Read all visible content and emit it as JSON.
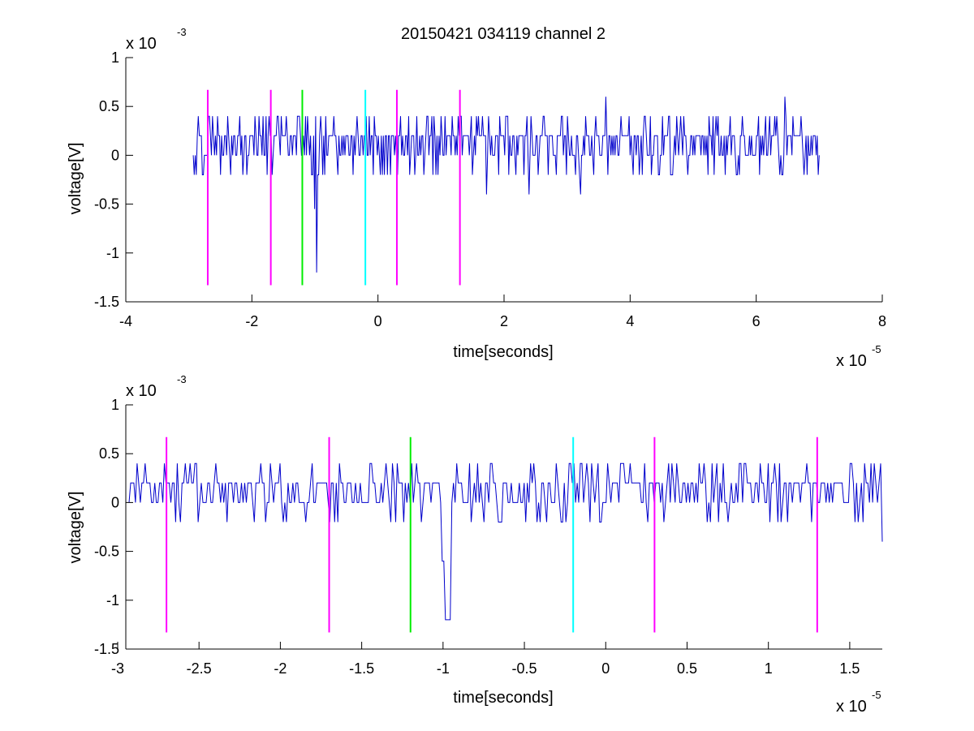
{
  "figure_title": "20150421 034119 channel 2",
  "colors": {
    "signal": "#0000cc",
    "magenta": "#ff00ff",
    "green": "#00ee00",
    "cyan": "#00ffff",
    "axes": "#000000"
  },
  "chart_data": [
    {
      "type": "line",
      "title": "20150421 034119 channel 2",
      "xlabel": "time[seconds]",
      "ylabel": "voltage[V]",
      "x_multiplier": "x 10",
      "x_exponent": "-5",
      "y_multiplier": "x 10",
      "y_exponent": "-3",
      "xlim": [
        -4,
        8
      ],
      "ylim": [
        -1.5,
        1
      ],
      "xticks": [
        -4,
        -2,
        0,
        2,
        4,
        6,
        8
      ],
      "xtick_labels": [
        "-4",
        "-2",
        "0",
        "2",
        "4",
        "6",
        "8"
      ],
      "yticks": [
        -1.5,
        -1,
        -0.5,
        0,
        0.5,
        1
      ],
      "ytick_labels": [
        "-1.5",
        "-1",
        "-0.5",
        "0",
        "0.5",
        "1"
      ],
      "grid": false,
      "markers": [
        {
          "x": -2.7,
          "color": "magenta",
          "ymin": -1.33,
          "ymax": 0.67
        },
        {
          "x": -1.7,
          "color": "magenta",
          "ymin": -1.33,
          "ymax": 0.67
        },
        {
          "x": -1.2,
          "color": "green",
          "ymin": -1.33,
          "ymax": 0.67
        },
        {
          "x": -0.2,
          "color": "cyan",
          "ymin": -1.33,
          "ymax": 0.67
        },
        {
          "x": 0.3,
          "color": "magenta",
          "ymin": -1.33,
          "ymax": 0.67
        },
        {
          "x": 1.3,
          "color": "magenta",
          "ymin": -1.33,
          "ymax": 0.67
        }
      ],
      "series": [
        {
          "x_range": [
            -2.93,
            7.0
          ],
          "points": 620,
          "seed": 7,
          "levels": [
            -0.2,
            0,
            0.2,
            0.4
          ],
          "spikes": [
            {
              "x": -0.97,
              "y": -1.2
            },
            {
              "x": -1.0,
              "y": -0.55
            },
            {
              "x": 3.62,
              "y": 0.6
            },
            {
              "x": 6.45,
              "y": 0.6
            },
            {
              "x": 3.22,
              "y": -0.4
            },
            {
              "x": 1.72,
              "y": -0.4
            },
            {
              "x": 2.4,
              "y": -0.4
            }
          ]
        }
      ]
    },
    {
      "type": "line",
      "xlabel": "time[seconds]",
      "ylabel": "voltage[V]",
      "x_multiplier": "x 10",
      "x_exponent": "-5",
      "y_multiplier": "x 10",
      "y_exponent": "-3",
      "xlim": [
        -2.95,
        1.7
      ],
      "ylim": [
        -1.5,
        1
      ],
      "xticks": [
        -3,
        -2.5,
        -2,
        -1.5,
        -1,
        -0.5,
        0,
        0.5,
        1,
        1.5
      ],
      "xtick_labels": [
        "-3",
        "-2.5",
        "-2",
        "-1.5",
        "-1",
        "-0.5",
        "0",
        "0.5",
        "1",
        "1.5"
      ],
      "yticks": [
        -1.5,
        -1,
        -0.5,
        0,
        0.5,
        1
      ],
      "ytick_labels": [
        "-1.5",
        "-1",
        "-0.5",
        "0",
        "0.5",
        "1"
      ],
      "grid": false,
      "markers": [
        {
          "x": -2.7,
          "color": "magenta",
          "ymin": -1.33,
          "ymax": 0.67
        },
        {
          "x": -1.7,
          "color": "magenta",
          "ymin": -1.33,
          "ymax": 0.67
        },
        {
          "x": -1.2,
          "color": "green",
          "ymin": -1.33,
          "ymax": 0.67
        },
        {
          "x": -0.2,
          "color": "cyan",
          "ymin": -1.33,
          "ymax": 0.67
        },
        {
          "x": 0.3,
          "color": "magenta",
          "ymin": -1.33,
          "ymax": 0.67
        },
        {
          "x": 1.3,
          "color": "magenta",
          "ymin": -1.33,
          "ymax": 0.67
        }
      ],
      "series": [
        {
          "x_range": [
            -2.93,
            1.7
          ],
          "points": 470,
          "seed": 11,
          "levels": [
            -0.2,
            0,
            0.2,
            0.4
          ],
          "spikes": [
            {
              "x": -0.98,
              "y": -1.2
            },
            {
              "x": -0.96,
              "y": -1.2
            },
            {
              "x": -1.0,
              "y": -0.6
            },
            {
              "x": 1.7,
              "y": -0.4
            }
          ]
        }
      ]
    }
  ]
}
